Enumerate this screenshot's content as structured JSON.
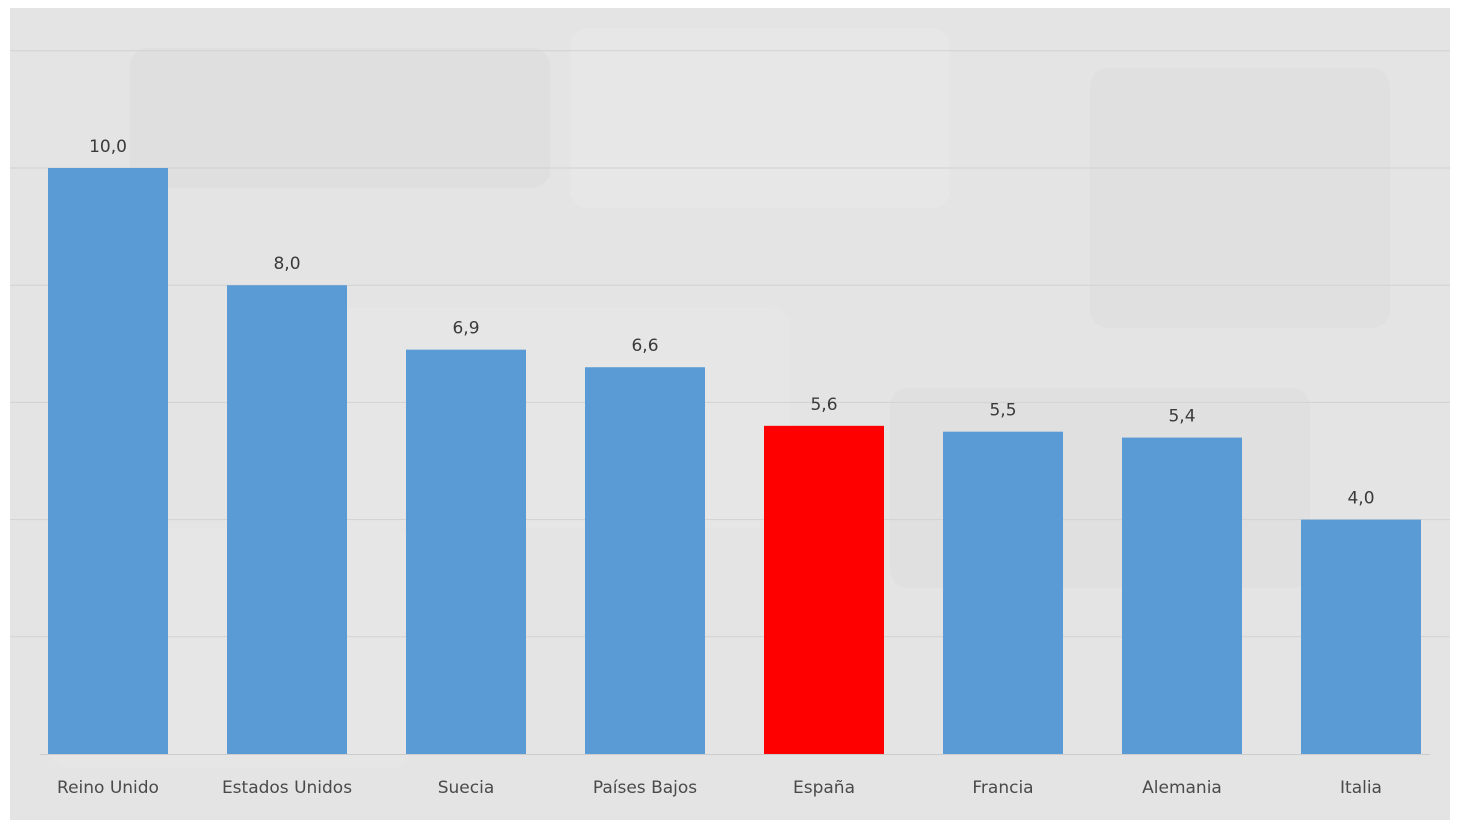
{
  "chart_data": {
    "type": "bar",
    "categories": [
      "Reino Unido",
      "Estados Unidos",
      "Suecia",
      "Países Bajos",
      "España",
      "Francia",
      "Alemania",
      "Italia"
    ],
    "values": [
      10.0,
      8.0,
      6.9,
      6.6,
      5.6,
      5.5,
      5.4,
      4.0
    ],
    "data_labels": [
      "10,0",
      "8,0",
      "6,9",
      "6,6",
      "5,6",
      "5,5",
      "5,4",
      "4,0"
    ],
    "ylim": [
      0,
      12
    ],
    "grid": true,
    "colors": {
      "default_bar": "#5b9bd5",
      "highlight_bar": "#ff0000",
      "background": "#e4e4e4",
      "gridline": "#d2d2d2",
      "baseline": "#cccccc"
    },
    "highlight_category": "España"
  }
}
